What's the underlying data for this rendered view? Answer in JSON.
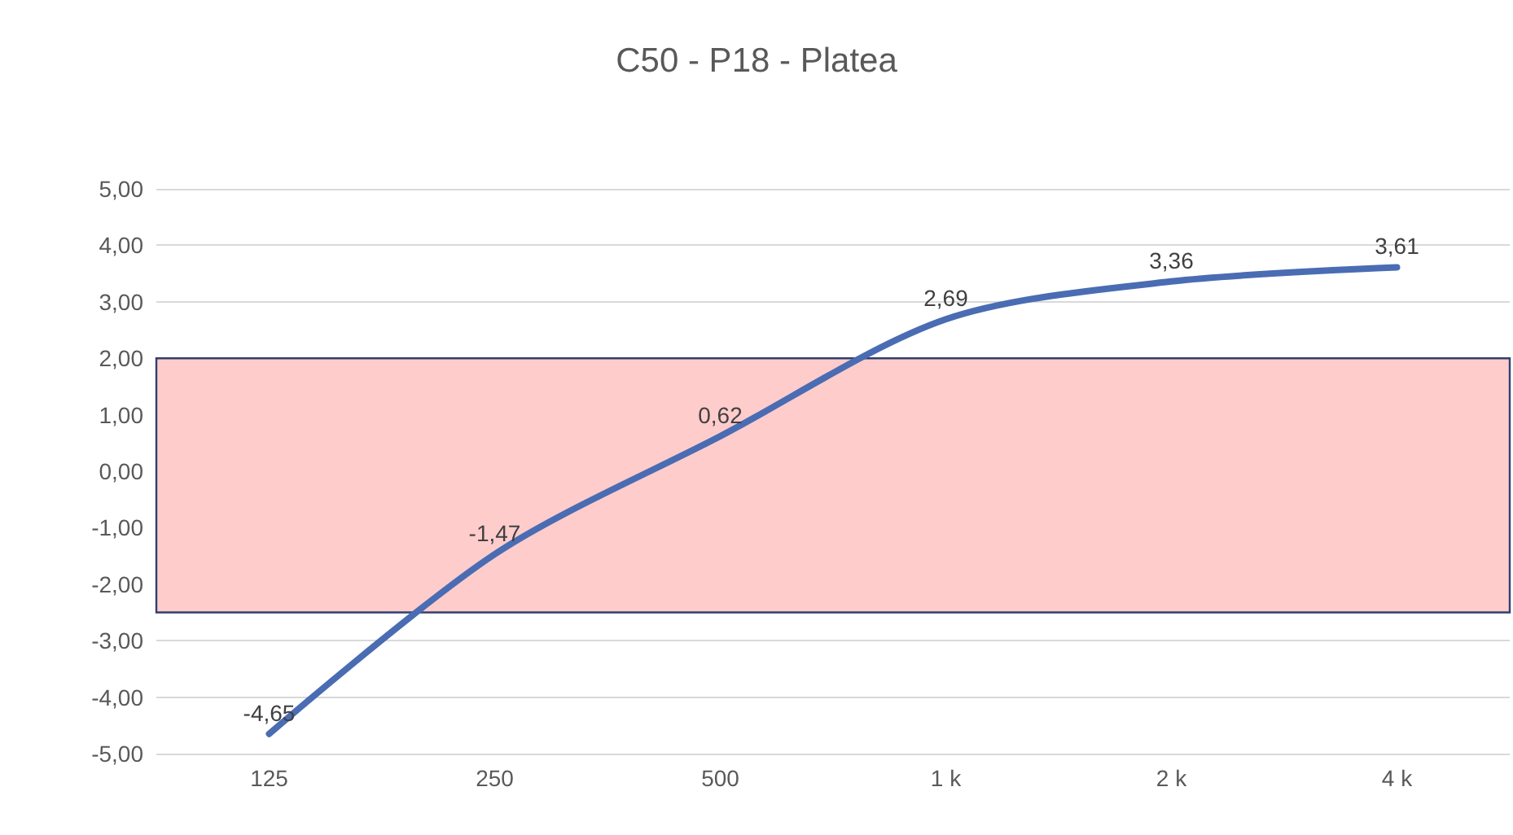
{
  "chart_data": {
    "type": "line",
    "title": "C50 - P18 - Platea",
    "categories": [
      "125",
      "250",
      "500",
      "1 k",
      "2 k",
      "4 k"
    ],
    "series": [
      {
        "color": "#4a6cb3",
        "values": [
          -4.65,
          -1.47,
          0.62,
          2.69,
          3.36,
          3.61
        ],
        "value_labels": [
          "-4,65",
          "-1,47",
          "0,62",
          "2,69",
          "3,36",
          "3,61"
        ]
      }
    ],
    "ylim": [
      -5,
      5
    ],
    "yticks": [
      {
        "value": -5,
        "label": "-5,00"
      },
      {
        "value": -4,
        "label": "-4,00"
      },
      {
        "value": -3,
        "label": "-3,00"
      },
      {
        "value": -2,
        "label": "-2,00"
      },
      {
        "value": -1,
        "label": "-1,00"
      },
      {
        "value": 0,
        "label": "0,00"
      },
      {
        "value": 1,
        "label": "1,00"
      },
      {
        "value": 2,
        "label": "2,00"
      },
      {
        "value": 3,
        "label": "3,00"
      },
      {
        "value": 4,
        "label": "4,00"
      },
      {
        "value": 5,
        "label": "5,00"
      }
    ],
    "bands": [
      {
        "axis": "y",
        "from": -2.5,
        "to": 2,
        "color": "#ffcccc"
      }
    ],
    "grid": "y",
    "marker": "none",
    "line_style": "solid"
  }
}
